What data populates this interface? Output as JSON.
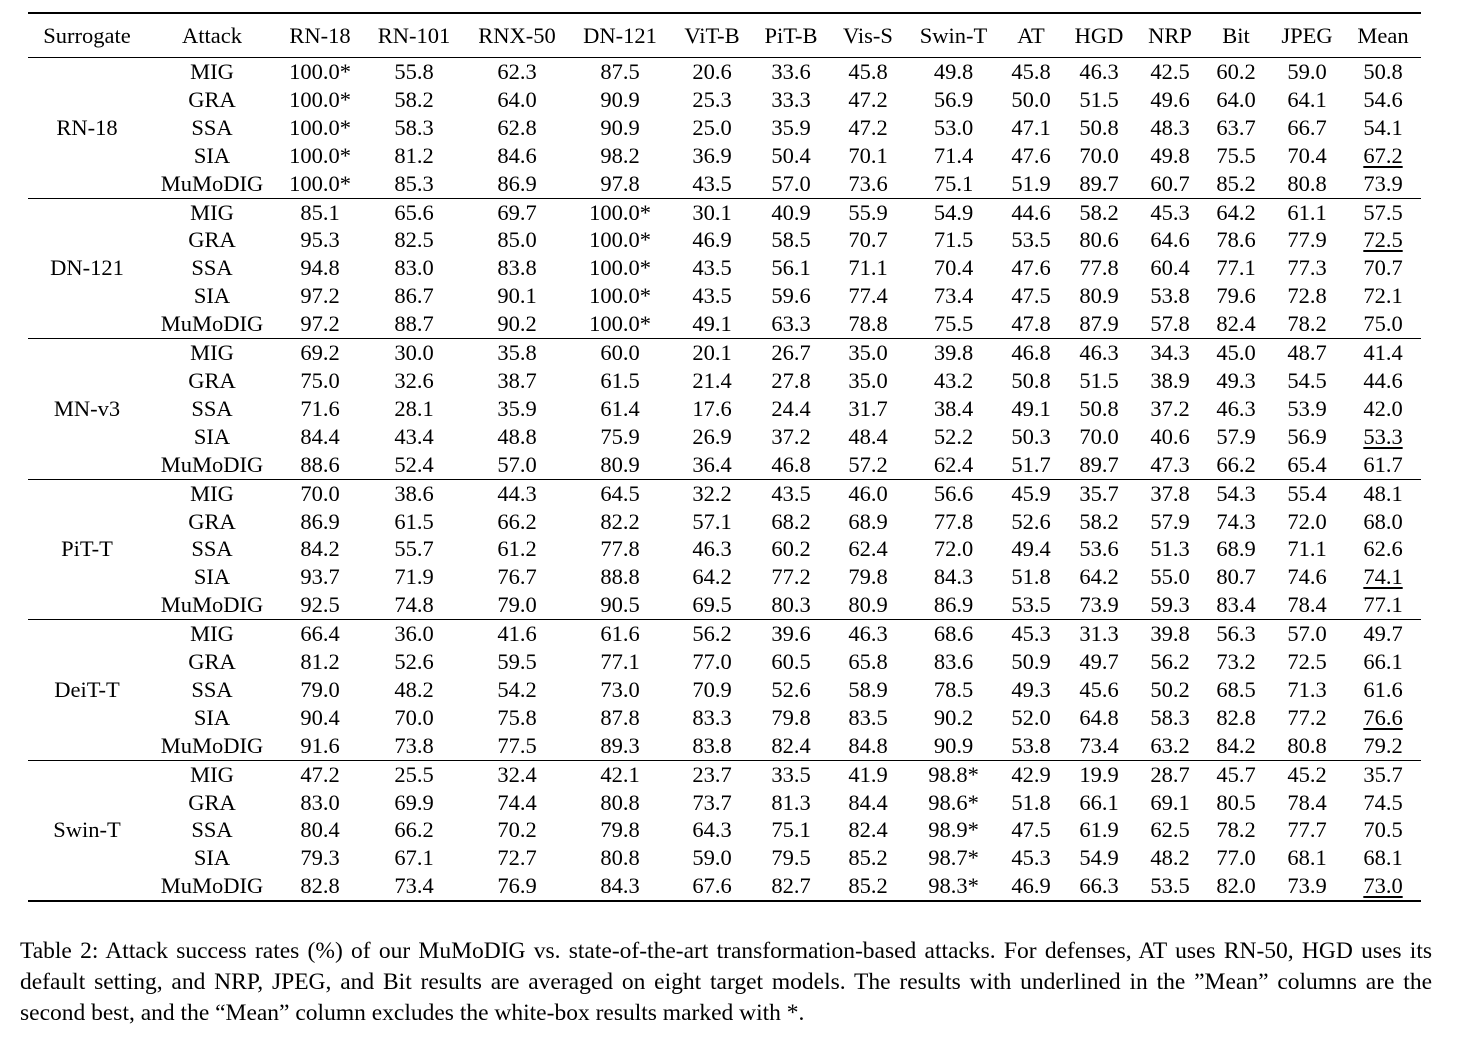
{
  "table": {
    "headers": [
      "Surrogate",
      "Attack",
      "RN-18",
      "RN-101",
      "RNX-50",
      "DN-121",
      "ViT-B",
      "PiT-B",
      "Vis-S",
      "Swin-T",
      "AT",
      "HGD",
      "NRP",
      "Bit",
      "JPEG",
      "Mean"
    ],
    "groups": [
      {
        "surrogate": "RN-18",
        "rows": [
          {
            "attack": "MIG",
            "values": [
              "100.0*",
              "55.8",
              "62.3",
              "87.5",
              "20.6",
              "33.6",
              "45.8",
              "49.8",
              "45.8",
              "46.3",
              "42.5",
              "60.2",
              "59.0",
              "50.8"
            ],
            "bold": [
              0
            ],
            "underline": []
          },
          {
            "attack": "GRA",
            "values": [
              "100.0*",
              "58.2",
              "64.0",
              "90.9",
              "25.3",
              "33.3",
              "47.2",
              "56.9",
              "50.0",
              "51.5",
              "49.6",
              "64.0",
              "64.1",
              "54.6"
            ],
            "bold": [
              0
            ],
            "underline": []
          },
          {
            "attack": "SSA",
            "values": [
              "100.0*",
              "58.3",
              "62.8",
              "90.9",
              "25.0",
              "35.9",
              "47.2",
              "53.0",
              "47.1",
              "50.8",
              "48.3",
              "63.7",
              "66.7",
              "54.1"
            ],
            "bold": [
              0
            ],
            "underline": []
          },
          {
            "attack": "SIA",
            "values": [
              "100.0*",
              "81.2",
              "84.6",
              "98.2",
              "36.9",
              "50.4",
              "70.1",
              "71.4",
              "47.6",
              "70.0",
              "49.8",
              "75.5",
              "70.4",
              "67.2"
            ],
            "bold": [
              0,
              3
            ],
            "underline": [
              13
            ]
          },
          {
            "attack": "MuMoDIG",
            "values": [
              "100.0*",
              "85.3",
              "86.9",
              "97.8",
              "43.5",
              "57.0",
              "73.6",
              "75.1",
              "51.9",
              "89.7",
              "60.7",
              "85.2",
              "80.8",
              "73.9"
            ],
            "bold": [
              0,
              1,
              2,
              4,
              5,
              6,
              7,
              8,
              9,
              10,
              11,
              12,
              13
            ],
            "underline": []
          }
        ]
      },
      {
        "surrogate": "DN-121",
        "rows": [
          {
            "attack": "MIG",
            "values": [
              "85.1",
              "65.6",
              "69.7",
              "100.0*",
              "30.1",
              "40.9",
              "55.9",
              "54.9",
              "44.6",
              "58.2",
              "45.3",
              "64.2",
              "61.1",
              "57.5"
            ],
            "bold": [
              3
            ],
            "underline": []
          },
          {
            "attack": "GRA",
            "values": [
              "95.3",
              "82.5",
              "85.0",
              "100.0*",
              "46.9",
              "58.5",
              "70.7",
              "71.5",
              "53.5",
              "80.6",
              "64.6",
              "78.6",
              "77.9",
              "72.5"
            ],
            "bold": [
              3,
              8,
              10
            ],
            "underline": [
              13
            ]
          },
          {
            "attack": "SSA",
            "values": [
              "94.8",
              "83.0",
              "83.8",
              "100.0*",
              "43.5",
              "56.1",
              "71.1",
              "70.4",
              "47.6",
              "77.8",
              "60.4",
              "77.1",
              "77.3",
              "70.7"
            ],
            "bold": [
              3
            ],
            "underline": []
          },
          {
            "attack": "SIA",
            "values": [
              "97.2",
              "86.7",
              "90.1",
              "100.0*",
              "43.5",
              "59.6",
              "77.4",
              "73.4",
              "47.5",
              "80.9",
              "53.8",
              "79.6",
              "72.8",
              "72.1"
            ],
            "bold": [
              0,
              3
            ],
            "underline": []
          },
          {
            "attack": "MuMoDIG",
            "values": [
              "97.2",
              "88.7",
              "90.2",
              "100.0*",
              "49.1",
              "63.3",
              "78.8",
              "75.5",
              "47.8",
              "87.9",
              "57.8",
              "82.4",
              "78.2",
              "75.0"
            ],
            "bold": [
              0,
              1,
              2,
              3,
              4,
              5,
              6,
              7,
              9,
              11,
              12,
              13
            ],
            "underline": []
          }
        ]
      },
      {
        "surrogate": "MN-v3",
        "rows": [
          {
            "attack": "MIG",
            "values": [
              "69.2",
              "30.0",
              "35.8",
              "60.0",
              "20.1",
              "26.7",
              "35.0",
              "39.8",
              "46.8",
              "46.3",
              "34.3",
              "45.0",
              "48.7",
              "41.4"
            ],
            "bold": [],
            "underline": []
          },
          {
            "attack": "GRA",
            "values": [
              "75.0",
              "32.6",
              "38.7",
              "61.5",
              "21.4",
              "27.8",
              "35.0",
              "43.2",
              "50.8",
              "51.5",
              "38.9",
              "49.3",
              "54.5",
              "44.6"
            ],
            "bold": [],
            "underline": []
          },
          {
            "attack": "SSA",
            "values": [
              "71.6",
              "28.1",
              "35.9",
              "61.4",
              "17.6",
              "24.4",
              "31.7",
              "38.4",
              "49.1",
              "50.8",
              "37.2",
              "46.3",
              "53.9",
              "42.0"
            ],
            "bold": [],
            "underline": []
          },
          {
            "attack": "SIA",
            "values": [
              "84.4",
              "43.4",
              "48.8",
              "75.9",
              "26.9",
              "37.2",
              "48.4",
              "52.2",
              "50.3",
              "70.0",
              "40.6",
              "57.9",
              "56.9",
              "53.3"
            ],
            "bold": [],
            "underline": [
              13
            ]
          },
          {
            "attack": "MuMoDIG",
            "values": [
              "88.6",
              "52.4",
              "57.0",
              "80.9",
              "36.4",
              "46.8",
              "57.2",
              "62.4",
              "51.7",
              "89.7",
              "47.3",
              "66.2",
              "65.4",
              "61.7"
            ],
            "bold": [
              0,
              1,
              2,
              3,
              4,
              5,
              6,
              7,
              8,
              9,
              10,
              11,
              12,
              13
            ],
            "underline": []
          }
        ]
      },
      {
        "surrogate": "PiT-T",
        "rows": [
          {
            "attack": "MIG",
            "values": [
              "70.0",
              "38.6",
              "44.3",
              "64.5",
              "32.2",
              "43.5",
              "46.0",
              "56.6",
              "45.9",
              "35.7",
              "37.8",
              "54.3",
              "55.4",
              "48.1"
            ],
            "bold": [],
            "underline": []
          },
          {
            "attack": "GRA",
            "values": [
              "86.9",
              "61.5",
              "66.2",
              "82.2",
              "57.1",
              "68.2",
              "68.9",
              "77.8",
              "52.6",
              "58.2",
              "57.9",
              "74.3",
              "72.0",
              "68.0"
            ],
            "bold": [],
            "underline": []
          },
          {
            "attack": "SSA",
            "values": [
              "84.2",
              "55.7",
              "61.2",
              "77.8",
              "46.3",
              "60.2",
              "62.4",
              "72.0",
              "49.4",
              "53.6",
              "51.3",
              "68.9",
              "71.1",
              "62.6"
            ],
            "bold": [],
            "underline": []
          },
          {
            "attack": "SIA",
            "values": [
              "93.7",
              "71.9",
              "76.7",
              "88.8",
              "64.2",
              "77.2",
              "79.8",
              "84.3",
              "51.8",
              "64.2",
              "55.0",
              "80.7",
              "74.6",
              "74.1"
            ],
            "bold": [
              0
            ],
            "underline": [
              13
            ]
          },
          {
            "attack": "MuMoDIG",
            "values": [
              "92.5",
              "74.8",
              "79.0",
              "90.5",
              "69.5",
              "80.3",
              "80.9",
              "86.9",
              "53.5",
              "73.9",
              "59.3",
              "83.4",
              "78.4",
              "77.1"
            ],
            "bold": [
              1,
              2,
              3,
              4,
              5,
              6,
              7,
              8,
              9,
              10,
              11,
              12,
              13
            ],
            "underline": []
          }
        ]
      },
      {
        "surrogate": "DeiT-T",
        "rows": [
          {
            "attack": "MIG",
            "values": [
              "66.4",
              "36.0",
              "41.6",
              "61.6",
              "56.2",
              "39.6",
              "46.3",
              "68.6",
              "45.3",
              "31.3",
              "39.8",
              "56.3",
              "57.0",
              "49.7"
            ],
            "bold": [],
            "underline": []
          },
          {
            "attack": "GRA",
            "values": [
              "81.2",
              "52.6",
              "59.5",
              "77.1",
              "77.0",
              "60.5",
              "65.8",
              "83.6",
              "50.9",
              "49.7",
              "56.2",
              "73.2",
              "72.5",
              "66.1"
            ],
            "bold": [],
            "underline": []
          },
          {
            "attack": "SSA",
            "values": [
              "79.0",
              "48.2",
              "54.2",
              "73.0",
              "70.9",
              "52.6",
              "58.9",
              "78.5",
              "49.3",
              "45.6",
              "50.2",
              "68.5",
              "71.3",
              "61.6"
            ],
            "bold": [],
            "underline": []
          },
          {
            "attack": "SIA",
            "values": [
              "90.4",
              "70.0",
              "75.8",
              "87.8",
              "83.3",
              "79.8",
              "83.5",
              "90.2",
              "52.0",
              "64.8",
              "58.3",
              "82.8",
              "77.2",
              "76.6"
            ],
            "bold": [],
            "underline": [
              13
            ]
          },
          {
            "attack": "MuMoDIG",
            "values": [
              "91.6",
              "73.8",
              "77.5",
              "89.3",
              "83.8",
              "82.4",
              "84.8",
              "90.9",
              "53.8",
              "73.4",
              "63.2",
              "84.2",
              "80.8",
              "79.2"
            ],
            "bold": [
              0,
              1,
              2,
              3,
              4,
              5,
              6,
              7,
              8,
              9,
              10,
              11,
              12,
              13
            ],
            "underline": []
          }
        ]
      },
      {
        "surrogate": "Swin-T",
        "rows": [
          {
            "attack": "MIG",
            "values": [
              "47.2",
              "25.5",
              "32.4",
              "42.1",
              "23.7",
              "33.5",
              "41.9",
              "98.8*",
              "42.9",
              "19.9",
              "28.7",
              "45.7",
              "45.2",
              "35.7"
            ],
            "bold": [],
            "underline": []
          },
          {
            "attack": "GRA",
            "values": [
              "83.0",
              "69.9",
              "74.4",
              "80.8",
              "73.7",
              "81.3",
              "84.4",
              "98.6*",
              "51.8",
              "66.1",
              "69.1",
              "80.5",
              "78.4",
              "74.5"
            ],
            "bold": [
              0,
              4,
              8,
              10,
              12,
              13
            ],
            "underline": []
          },
          {
            "attack": "SSA",
            "values": [
              "80.4",
              "66.2",
              "70.2",
              "79.8",
              "64.3",
              "75.1",
              "82.4",
              "98.9*",
              "47.5",
              "61.9",
              "62.5",
              "78.2",
              "77.7",
              "70.5"
            ],
            "bold": [
              7
            ],
            "underline": []
          },
          {
            "attack": "SIA",
            "values": [
              "79.3",
              "67.1",
              "72.7",
              "80.8",
              "59.0",
              "79.5",
              "85.2",
              "98.7*",
              "45.3",
              "54.9",
              "48.2",
              "77.0",
              "68.1",
              "68.1"
            ],
            "bold": [],
            "underline": []
          },
          {
            "attack": "MuMoDIG",
            "values": [
              "82.8",
              "73.4",
              "76.9",
              "84.3",
              "67.6",
              "82.7",
              "85.2",
              "98.3*",
              "46.9",
              "66.3",
              "53.5",
              "82.0",
              "73.9",
              "73.0"
            ],
            "bold": [
              1,
              2,
              3,
              5,
              6,
              9,
              11
            ],
            "underline": [
              13
            ]
          }
        ]
      }
    ]
  },
  "caption": "Table 2: Attack success rates (%) of our MuMoDIG vs. state-of-the-art transformation-based attacks. For defenses, AT uses RN-50, HGD uses its default setting, and NRP, JPEG, and Bit results are averaged on eight target models. The results with underlined in the ”Mean” columns are the second best, and the “Mean” column excludes the white-box results marked with *."
}
